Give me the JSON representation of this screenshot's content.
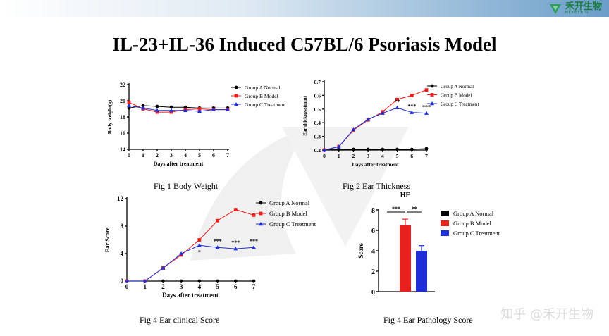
{
  "header": {
    "logo_cn": "禾开生物",
    "logo_en": "HEKEYBIO"
  },
  "page": {
    "title": "IL-23+IL-36 Induced C57BL/6 Psoriasis Model"
  },
  "captions": {
    "fig1": "Fig 1 Body Weight",
    "fig2": "Fig 2 Ear Thickness",
    "fig3": "Fig 4  Ear clinical Score",
    "fig4": "Fig 4  Ear Pathology Score"
  },
  "watermark": {
    "text": "知乎 @禾开生物"
  },
  "colors": {
    "normal": "#000000",
    "model": "#e8211f",
    "treatment": "#1f2fd8"
  },
  "chart_data": [
    {
      "type": "line",
      "xlabel": "Days after  treatment",
      "ylabel": "Body weight(g)",
      "x": [
        0,
        1,
        2,
        3,
        4,
        5,
        6,
        7
      ],
      "ylim": [
        14,
        22
      ],
      "yticks": [
        14,
        16,
        18,
        20,
        22
      ],
      "legend": {
        "position": "right",
        "entries": [
          "Group A Normal",
          "Group B Model",
          "Group C Treatment"
        ]
      },
      "series": [
        {
          "name": "Group A Normal",
          "values": [
            19.1,
            19.4,
            19.3,
            19.2,
            19.2,
            19.1,
            19.1,
            19.1
          ]
        },
        {
          "name": "Group B Model",
          "values": [
            19.8,
            19.0,
            18.6,
            18.6,
            18.9,
            19.0,
            18.9,
            18.9
          ]
        },
        {
          "name": "Group C Treatment",
          "values": [
            19.4,
            19.1,
            18.8,
            18.8,
            18.8,
            18.7,
            18.9,
            18.9
          ]
        }
      ]
    },
    {
      "type": "line",
      "xlabel": "Days after  treatment",
      "ylabel": "Ear thickness(mm)",
      "x": [
        0,
        1,
        2,
        3,
        4,
        5,
        6,
        7
      ],
      "ylim": [
        0.2,
        0.7
      ],
      "yticks": [
        0.2,
        0.3,
        0.4,
        0.5,
        0.6,
        0.7
      ],
      "legend": {
        "position": "right",
        "entries": [
          "Group A Normal",
          "Group B Model",
          "Group C Treatment"
        ]
      },
      "series": [
        {
          "name": "Group A Normal",
          "values": [
            0.2,
            0.205,
            0.205,
            0.205,
            0.205,
            0.205,
            0.205,
            0.21
          ]
        },
        {
          "name": "Group B Model",
          "values": [
            0.2,
            0.225,
            0.345,
            0.42,
            0.48,
            0.57,
            0.6,
            0.64
          ]
        },
        {
          "name": "Group C Treatment",
          "values": [
            0.2,
            0.225,
            0.35,
            0.425,
            0.47,
            0.51,
            0.475,
            0.47
          ]
        }
      ],
      "annotations": [
        {
          "x": 5,
          "text": "**"
        },
        {
          "x": 6,
          "text": "***"
        },
        {
          "x": 7,
          "text": "***"
        }
      ]
    },
    {
      "type": "line",
      "xlabel": "Days  after  treatment",
      "ylabel": "Ear Score",
      "x": [
        0,
        1,
        2,
        3,
        4,
        5,
        6,
        7
      ],
      "ylim": [
        0,
        12
      ],
      "yticks": [
        0,
        4,
        8,
        12
      ],
      "legend": {
        "position": "right",
        "entries": [
          "Group A Normal",
          "Group B Model",
          "Group C Treatment"
        ]
      },
      "series": [
        {
          "name": "Group A Normal",
          "values": [
            0,
            0,
            0,
            0,
            0,
            0,
            0,
            0
          ]
        },
        {
          "name": "Group B Model",
          "values": [
            0,
            0,
            1.9,
            3.8,
            6.0,
            8.8,
            10.4,
            9.6
          ]
        },
        {
          "name": "Group C Treatment",
          "values": [
            0,
            0,
            1.9,
            4.0,
            5.2,
            4.9,
            4.7,
            4.9
          ]
        }
      ],
      "annotations": [
        {
          "x": 4,
          "text": "*"
        },
        {
          "x": 5,
          "text": "***"
        },
        {
          "x": 6,
          "text": "***"
        },
        {
          "x": 7,
          "text": "***"
        }
      ]
    },
    {
      "type": "bar",
      "title": "HE",
      "ylabel": "Score",
      "categories": [
        "Group A Normal",
        "Group B Model",
        "Group C Treatment"
      ],
      "values": [
        0,
        6.5,
        4.0
      ],
      "errors": [
        0,
        0.6,
        0.5
      ],
      "ylim": [
        0,
        8
      ],
      "yticks": [
        0,
        2,
        4,
        6,
        8
      ],
      "legend": {
        "position": "right",
        "entries": [
          "Group A Normal",
          "Group B Model",
          "Group C Treatment"
        ]
      },
      "significance": [
        "***",
        "**"
      ]
    }
  ]
}
